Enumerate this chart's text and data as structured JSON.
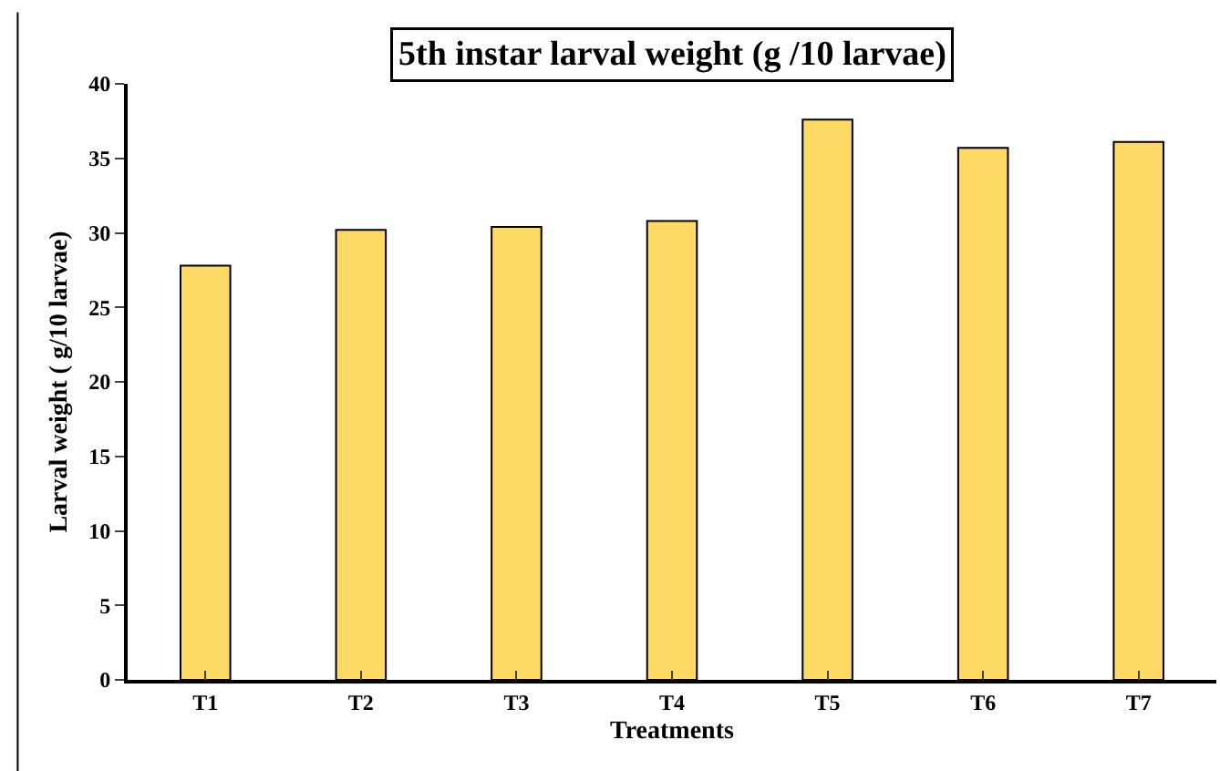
{
  "chart_data": {
    "type": "bar",
    "title": "5th instar larval weight (g /10 larvae)",
    "xlabel": "Treatments",
    "ylabel": "Larval weight ( g/10 larvae)",
    "categories": [
      "T1",
      "T2",
      "T3",
      "T4",
      "T5",
      "T6",
      "T7"
    ],
    "values": [
      27.8,
      30.2,
      30.4,
      30.8,
      37.6,
      35.7,
      36.1
    ],
    "color": "#ffd966",
    "ylim": [
      0,
      40
    ],
    "yticks": [
      0,
      5,
      10,
      15,
      20,
      25,
      30,
      35,
      40
    ],
    "grid": false
  }
}
